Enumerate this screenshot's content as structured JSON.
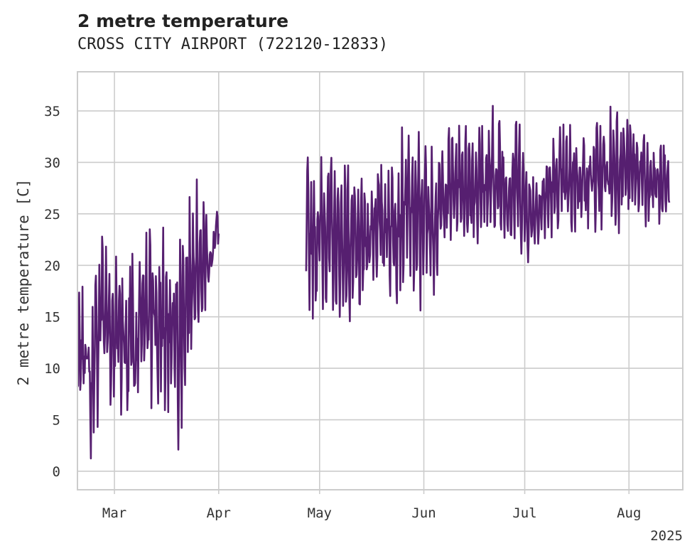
{
  "chart_data": {
    "type": "line",
    "title": "2 metre temperature",
    "subtitle": "CROSS CITY AIRPORT (722120-12833)",
    "xlabel": "",
    "ylabel": "2 metre temperature [C]",
    "x_tick_labels": [
      "Mar",
      "Apr",
      "May",
      "Jun",
      "Jul",
      "Aug"
    ],
    "x_tick_dates": [
      "2025-03-01",
      "2025-04-01",
      "2025-05-01",
      "2025-06-01",
      "2025-07-01",
      "2025-08-01"
    ],
    "x_offset_label": "2025",
    "xlim": [
      "2025-02-18",
      "2025-08-17"
    ],
    "ylim": [
      -1.8,
      38.8
    ],
    "y_ticks": [
      0,
      5,
      10,
      15,
      20,
      25,
      30,
      35
    ],
    "grid": true,
    "color": "#561f70",
    "series": [
      {
        "segments": [
          {
            "start": "2025-02-18",
            "end": "2025-04-01",
            "x": [
              "2025-02-18",
              "2025-02-19",
              "2025-02-20",
              "2025-02-21",
              "2025-02-22",
              "2025-02-23",
              "2025-02-24",
              "2025-02-25",
              "2025-02-26",
              "2025-02-27",
              "2025-02-28",
              "2025-03-01",
              "2025-03-02",
              "2025-03-03",
              "2025-03-04",
              "2025-03-05",
              "2025-03-06",
              "2025-03-07",
              "2025-03-08",
              "2025-03-09",
              "2025-03-10",
              "2025-03-11",
              "2025-03-12",
              "2025-03-13",
              "2025-03-14",
              "2025-03-15",
              "2025-03-16",
              "2025-03-17",
              "2025-03-18",
              "2025-03-19",
              "2025-03-20",
              "2025-03-21",
              "2025-03-22",
              "2025-03-23",
              "2025-03-24",
              "2025-03-25",
              "2025-03-26",
              "2025-03-27",
              "2025-03-28",
              "2025-03-29",
              "2025-03-30",
              "2025-03-31",
              "2025-04-01"
            ],
            "y_high": [
              14,
              21,
              15,
              14,
              13,
              22,
              19,
              26,
              24,
              22,
              23,
              24,
              20,
              26,
              21,
              20,
              27,
              20,
              19,
              23,
              25,
              23,
              29,
              27,
              20,
              28,
              26,
              24,
              20,
              21,
              24,
              26,
              25,
              28,
              30,
              29,
              28,
              25,
              30,
              22,
              22,
              26,
              26
            ],
            "y_low": [
              6,
              1,
              8,
              9,
              0,
              2,
              4,
              10,
              7,
              8,
              3,
              5,
              7,
              3,
              5,
              1,
              6,
              2,
              6,
              9,
              3,
              6,
              4,
              8,
              1,
              5,
              2,
              1,
              7,
              5,
              1,
              4,
              7,
              9,
              9,
              14,
              13,
              12,
              15,
              18,
              19,
              20,
              21
            ]
          },
          {
            "start": "2025-04-27",
            "end": "2025-08-13",
            "x": [
              "2025-04-27",
              "2025-04-30",
              "2025-05-03",
              "2025-05-06",
              "2025-05-09",
              "2025-05-12",
              "2025-05-15",
              "2025-05-18",
              "2025-05-21",
              "2025-05-24",
              "2025-05-27",
              "2025-05-30",
              "2025-06-02",
              "2025-06-05",
              "2025-06-08",
              "2025-06-11",
              "2025-06-14",
              "2025-06-17",
              "2025-06-20",
              "2025-06-23",
              "2025-06-26",
              "2025-06-29",
              "2025-07-02",
              "2025-07-05",
              "2025-07-08",
              "2025-07-11",
              "2025-07-14",
              "2025-07-17",
              "2025-07-20",
              "2025-07-23",
              "2025-07-26",
              "2025-07-29",
              "2025-08-01",
              "2025-08-04",
              "2025-08-07",
              "2025-08-10",
              "2025-08-13"
            ],
            "y_high": [
              31,
              31,
              33,
              29,
              31,
              29,
              28,
              31,
              32,
              33,
              34,
              34,
              35,
              32,
              34,
              34,
              34,
              35,
              36,
              36,
              33,
              36,
              30,
              29,
              32,
              34,
              34,
              34,
              35,
              35,
              36,
              37,
              35,
              34,
              33,
              33,
              32
            ],
            "y_low": [
              16,
              14,
              15,
              15,
              14,
              13,
              17,
              18,
              16,
              16,
              17,
              14,
              15,
              18,
              21,
              22,
              22,
              21,
              20,
              21,
              21,
              21,
              20,
              22,
              22,
              22,
              22,
              23,
              22,
              22,
              22,
              23,
              24,
              24,
              22,
              23,
              24
            ]
          }
        ]
      }
    ]
  }
}
